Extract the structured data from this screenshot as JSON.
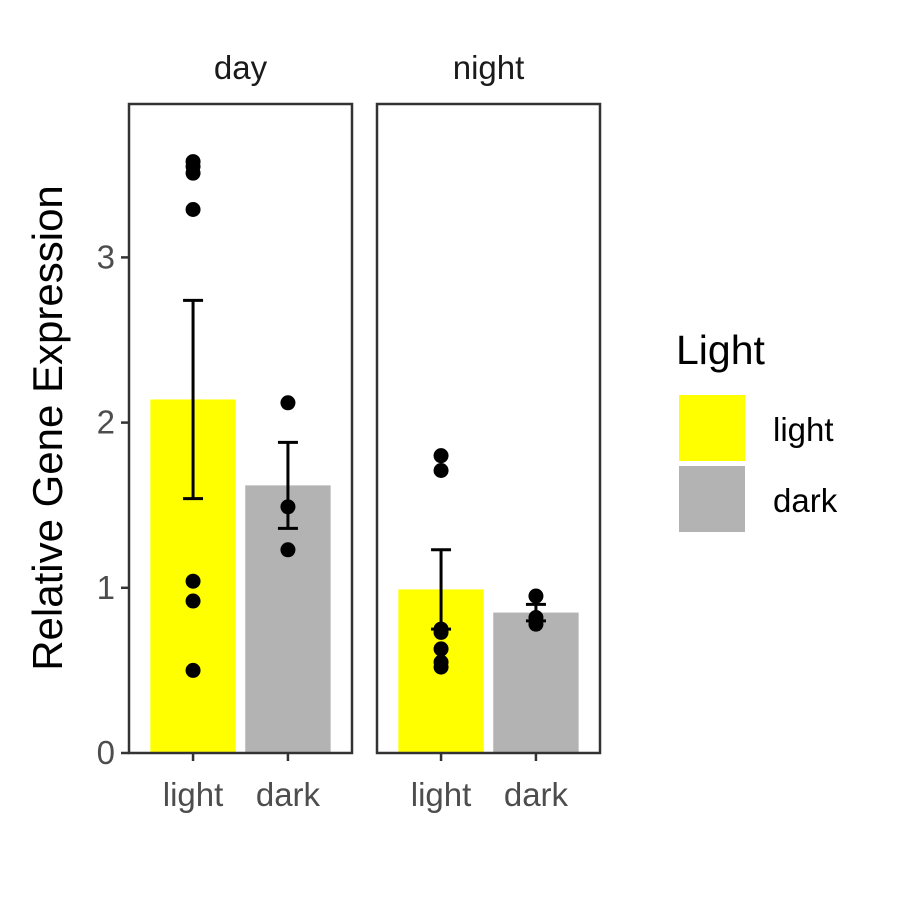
{
  "chart_data": {
    "type": "bar",
    "ylabel": "Relative Gene Expression",
    "ylim": [
      0,
      3.9
    ],
    "yticks": [
      0,
      1,
      2,
      3
    ],
    "grid": false,
    "legend_placement": "right",
    "legend": {
      "title": "Light",
      "entries": [
        {
          "label": "light",
          "color": "#FFFF00"
        },
        {
          "label": "dark",
          "color": "#B3B3B3"
        }
      ]
    },
    "panels": [
      {
        "name": "day",
        "bars": [
          {
            "category": "light",
            "value": 2.14,
            "error_low": 1.54,
            "error_high": 2.74,
            "points": [
              3.58,
              3.55,
              3.51,
              3.29,
              1.04,
              0.92,
              0.5
            ]
          },
          {
            "category": "dark",
            "value": 1.62,
            "error_low": 1.36,
            "error_high": 1.88,
            "points": [
              2.12,
              1.49,
              1.23
            ]
          }
        ]
      },
      {
        "name": "night",
        "bars": [
          {
            "category": "light",
            "value": 0.99,
            "error_low": 0.75,
            "error_high": 1.23,
            "points": [
              1.8,
              1.71,
              0.75,
              0.73,
              0.63,
              0.55,
              0.52
            ]
          },
          {
            "category": "dark",
            "value": 0.85,
            "error_low": 0.8,
            "error_high": 0.9,
            "points": [
              0.95,
              0.82,
              0.78
            ]
          }
        ]
      }
    ]
  }
}
